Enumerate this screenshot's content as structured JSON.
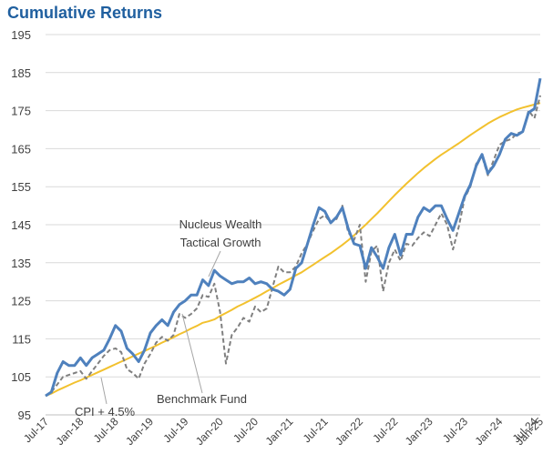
{
  "title": "Cumulative Returns",
  "colors": {
    "title": "#1f5f9f",
    "nucleus": "#4f81bd",
    "benchmark": "#808080",
    "cpi": "#f2c12e",
    "grid": "#d9d9d9"
  },
  "chart_data": {
    "type": "line",
    "title": "Cumulative Returns",
    "xlabel": "",
    "ylabel": "",
    "ylim": [
      95,
      195
    ],
    "yticks": [
      "95",
      "105",
      "115",
      "125",
      "135",
      "145",
      "155",
      "165",
      "175",
      "185",
      "195"
    ],
    "xticks": [
      "Jul-17",
      "Jan-18",
      "Jul-18",
      "Jan-19",
      "Jul-19",
      "Jan-20",
      "Jul-20",
      "Jan-21",
      "Jul-21",
      "Jan-22",
      "Jul-22",
      "Jan-23",
      "Jul-23",
      "Jan-24",
      "Jul-24",
      "Jan-25"
    ],
    "grid": "horizontal",
    "legend": "inline annotations",
    "annotations": [
      {
        "text": "Nucleus Wealth",
        "series": "nucleus"
      },
      {
        "text": "Tactical Growth",
        "series": "nucleus"
      },
      {
        "text": "Benchmark Fund",
        "series": "benchmark"
      },
      {
        "text": "CPI + 4.5%",
        "series": "cpi"
      }
    ],
    "series": [
      {
        "key": "nucleus",
        "values": [
          100,
          101,
          106,
          109,
          108,
          108,
          110,
          108,
          110,
          111,
          112,
          115,
          118.5,
          117,
          112.5,
          111,
          109,
          112,
          116.5,
          118.5,
          120,
          118.5,
          122,
          124,
          125,
          126.5,
          126.5,
          130.5,
          129,
          133,
          131.5,
          130.5,
          129.5,
          130,
          130,
          131,
          129.5,
          130,
          129.5,
          128,
          127.5,
          126.5,
          128,
          133.5,
          135,
          140,
          145,
          149.5,
          148.5,
          145.5,
          147,
          149.5,
          144,
          140,
          139.5,
          133.5,
          139,
          136.5,
          133.5,
          139,
          142.5,
          137,
          142.5,
          142.5,
          147,
          149.5,
          148.5,
          150,
          150,
          146.5,
          143.5,
          148,
          152.5,
          155.5,
          160.5,
          163.5,
          158.5,
          160.5,
          163.5,
          167.5,
          169,
          168.5,
          169.5,
          174.5,
          175.5,
          183.5
        ]
      },
      {
        "key": "benchmark",
        "values": [
          100,
          101,
          103,
          105,
          105.5,
          106,
          106.5,
          104.5,
          106.5,
          108.5,
          110.5,
          112,
          112.5,
          111.5,
          107,
          106,
          104.5,
          108.5,
          111,
          114,
          115.5,
          114.5,
          116,
          121.5,
          120.5,
          121.5,
          123,
          126.5,
          126,
          129.5,
          122,
          108.5,
          116,
          118,
          120.5,
          119.5,
          123.5,
          122,
          123,
          128.5,
          134,
          132.5,
          132.5,
          134,
          137.5,
          140,
          143.5,
          146.5,
          147.5,
          145.5,
          146.5,
          150,
          143,
          141,
          145,
          130,
          138,
          139.5,
          127.5,
          135,
          138.5,
          135.5,
          140,
          139.5,
          141.5,
          143,
          142,
          145,
          148,
          145,
          138.5,
          144.5,
          152,
          155,
          161,
          163,
          158,
          162,
          166,
          167,
          167.5,
          169,
          169.5,
          175,
          173,
          179
        ]
      },
      {
        "key": "cpi",
        "values": [
          100,
          100.6,
          101.4,
          102.1,
          102.8,
          103.5,
          104.1,
          104.8,
          105.5,
          106.2,
          106.9,
          107.6,
          108.3,
          109,
          109.7,
          110.4,
          111.1,
          111.8,
          112.5,
          113.2,
          114,
          114.7,
          115.4,
          116.2,
          116.9,
          117.7,
          118.4,
          119.2,
          119.6,
          120.1,
          121,
          121.8,
          122.6,
          123.5,
          124.2,
          125,
          125.8,
          126.6,
          127.5,
          128.3,
          129.2,
          130,
          130.8,
          131.7,
          132.5,
          133.5,
          134.5,
          135.5,
          136.5,
          137.5,
          138.6,
          139.7,
          140.9,
          142.2,
          143.6,
          145,
          146.5,
          148,
          149.6,
          151.2,
          152.8,
          154.3,
          155.8,
          157.2,
          158.6,
          159.9,
          161.1,
          162.3,
          163.4,
          164.4,
          165.4,
          166.4,
          167.5,
          168.6,
          169.6,
          170.6,
          171.6,
          172.5,
          173.3,
          174,
          174.7,
          175.3,
          175.8,
          176.2,
          176.6,
          177
        ]
      }
    ]
  }
}
